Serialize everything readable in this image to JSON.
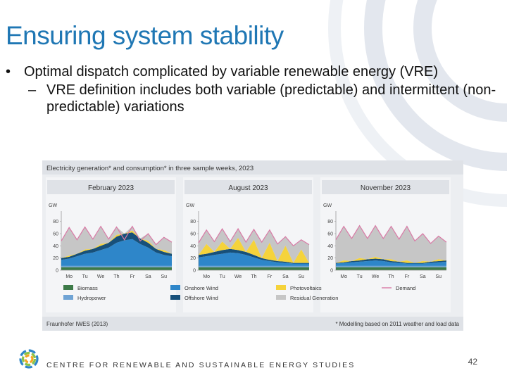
{
  "slide": {
    "title": "Ensuring system stability",
    "bullet_1": "Optimal dispatch complicated by variable renewable energy (VRE)",
    "sub_bullet_1": "VRE definition includes both variable (predictable) and intermittent (non-predictable) variations",
    "bullet_marker": "•",
    "sub_marker": "–",
    "footer_text": "CENTRE FOR RENEWABLE AND SUSTAINABLE ENERGY STUDIES",
    "page_number": "42",
    "colors": {
      "title": "#1f77b4",
      "accent_arcs": "#d8dde6"
    }
  },
  "chart_data": {
    "type": "area",
    "title": "Electricity generation* and consumption* in three sample weeks, 2023",
    "source": "Fraunhofer IWES (2013)",
    "footnote": "* Modelling based on 2011 weather and load data",
    "unit": "GW",
    "ylim": [
      0,
      90
    ],
    "yticks": [
      0,
      20,
      40,
      60,
      80
    ],
    "days": [
      "Mo",
      "Tu",
      "We",
      "Th",
      "Fr",
      "Sa",
      "Su"
    ],
    "legend": [
      {
        "name": "Biomass",
        "color": "#3d7a48"
      },
      {
        "name": "Hydropower",
        "color": "#6fa3d4"
      },
      {
        "name": "Onshore Wind",
        "color": "#2e86c9"
      },
      {
        "name": "Offshore Wind",
        "color": "#17507a"
      },
      {
        "name": "Photovoltaics",
        "color": "#f5d33b"
      },
      {
        "name": "Demand",
        "color": "#d97aa6"
      },
      {
        "name": "Residual Generation",
        "color": "#c6c6c6"
      }
    ],
    "panels": [
      {
        "label": "February 2023",
        "x_day": [
          0,
          0.5,
          1,
          1.5,
          2,
          2.5,
          3,
          3.5,
          4,
          4.5,
          5,
          5.5,
          6,
          6.5,
          7
        ],
        "demand": [
          48,
          70,
          50,
          71,
          51,
          72,
          51,
          71,
          50,
          72,
          48,
          60,
          42,
          54,
          46
        ],
        "biomass": [
          5,
          5,
          5,
          5,
          5,
          5,
          5,
          5,
          5,
          5,
          5,
          5,
          5,
          5,
          5
        ],
        "hydropower": [
          2,
          2,
          2,
          2,
          2,
          2,
          2,
          2,
          2,
          2,
          2,
          2,
          2,
          2,
          2
        ],
        "onshore_wind": [
          10,
          12,
          16,
          20,
          22,
          26,
          30,
          38,
          42,
          44,
          36,
          30,
          22,
          18,
          16
        ],
        "offshore_wind": [
          3,
          3,
          4,
          5,
          6,
          7,
          8,
          10,
          11,
          11,
          9,
          8,
          6,
          5,
          4
        ],
        "photovoltaics": [
          0,
          2,
          0,
          2,
          0,
          3,
          0,
          3,
          0,
          3,
          0,
          3,
          0,
          3,
          0
        ]
      },
      {
        "label": "August 2023",
        "x_day": [
          0,
          0.5,
          1,
          1.5,
          2,
          2.5,
          3,
          3.5,
          4,
          4.5,
          5,
          5.5,
          6,
          6.5,
          7
        ],
        "demand": [
          45,
          66,
          47,
          68,
          47,
          68,
          46,
          67,
          46,
          66,
          43,
          55,
          40,
          50,
          42
        ],
        "biomass": [
          5,
          5,
          5,
          5,
          5,
          5,
          5,
          5,
          5,
          5,
          5,
          5,
          5,
          5,
          5
        ],
        "hydropower": [
          2,
          2,
          2,
          2,
          2,
          2,
          2,
          2,
          2,
          2,
          2,
          2,
          2,
          2,
          2
        ],
        "onshore_wind": [
          14,
          16,
          18,
          20,
          22,
          21,
          18,
          14,
          10,
          8,
          6,
          5,
          4,
          4,
          4
        ],
        "offshore_wind": [
          4,
          4,
          5,
          6,
          6,
          5,
          5,
          4,
          3,
          2,
          2,
          2,
          1,
          1,
          1
        ],
        "photovoltaics": [
          0,
          16,
          0,
          14,
          0,
          20,
          0,
          25,
          0,
          28,
          0,
          26,
          0,
          22,
          0
        ]
      },
      {
        "label": "November 2023",
        "x_day": [
          0,
          0.5,
          1,
          1.5,
          2,
          2.5,
          3,
          3.5,
          4,
          4.5,
          5,
          5.5,
          6,
          6.5,
          7
        ],
        "demand": [
          50,
          72,
          52,
          73,
          52,
          73,
          52,
          72,
          51,
          72,
          48,
          60,
          44,
          56,
          46
        ],
        "biomass": [
          5,
          5,
          5,
          5,
          5,
          5,
          5,
          5,
          5,
          5,
          5,
          5,
          5,
          5,
          5
        ],
        "hydropower": [
          2,
          2,
          2,
          2,
          2,
          2,
          2,
          2,
          2,
          2,
          2,
          2,
          2,
          2,
          2
        ],
        "onshore_wind": [
          4,
          5,
          6,
          7,
          8,
          9,
          8,
          6,
          5,
          4,
          4,
          4,
          5,
          6,
          7
        ],
        "offshore_wind": [
          1,
          1,
          2,
          2,
          3,
          3,
          3,
          2,
          2,
          1,
          1,
          1,
          2,
          2,
          2
        ],
        "photovoltaics": [
          0,
          3,
          0,
          4,
          0,
          3,
          0,
          3,
          0,
          4,
          0,
          3,
          0,
          3,
          0
        ]
      }
    ]
  }
}
